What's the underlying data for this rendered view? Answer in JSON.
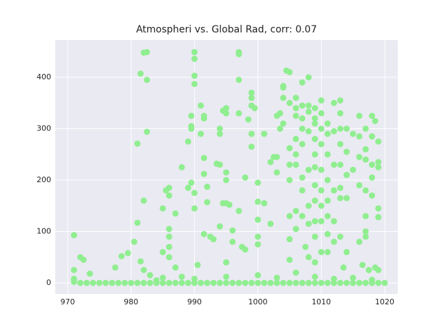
{
  "chart_data": {
    "type": "scatter",
    "title": "Atmospheri vs. Global Rad, corr: 0.07",
    "color": "#90ee90",
    "grid": true,
    "xlim": [
      968.04,
      1022.07
    ],
    "ylim": [
      -21.5,
      472.5
    ],
    "xticks": [
      970,
      980,
      990,
      1000,
      1010,
      1020
    ],
    "yticks": [
      0,
      100,
      200,
      300,
      400
    ],
    "x": [
      971,
      971,
      971,
      972,
      972.5,
      973.5,
      971,
      972,
      973,
      974,
      975,
      977,
      977.5,
      978.5,
      979.5,
      980.5,
      981,
      981,
      981.5,
      982,
      982.5,
      982.5,
      982.5,
      982,
      981.5,
      982,
      983,
      984,
      985,
      985,
      985.5,
      986,
      986,
      986,
      986,
      986,
      986,
      987,
      987,
      988,
      988,
      989,
      989,
      989.5,
      989.5,
      989.5,
      989.5,
      990,
      990,
      990,
      990,
      990,
      990,
      990.5,
      991,
      991,
      991.5,
      991.5,
      991.5,
      991.5,
      992,
      992,
      991.5,
      992.5,
      993,
      993.5,
      994,
      994,
      994,
      994.5,
      995,
      995,
      995,
      995,
      994.5,
      995,
      995.5,
      995,
      994,
      996,
      996,
      997,
      997,
      997,
      997,
      997,
      997.5,
      998,
      998,
      998.5,
      999,
      999,
      999,
      999.5,
      999,
      999,
      1000,
      1000,
      1000,
      1000,
      1000,
      1001,
      1001,
      1002,
      1002,
      1002.5,
      1003,
      1003,
      1003,
      1003.5,
      1003.5,
      1004,
      1004,
      1004,
      1004,
      1004.5,
      1005,
      1005,
      1005,
      1005,
      1005,
      1005,
      1005,
      1005,
      1006,
      1006,
      1006,
      1006,
      1006,
      1006,
      1006,
      1006,
      1007,
      1007,
      1007,
      1007,
      1007,
      1007,
      1007,
      1007,
      1007.5,
      1008,
      1008,
      1008,
      1008,
      1008,
      1008,
      1008,
      1008,
      1009,
      1009,
      1009,
      1009,
      1009,
      1009,
      1009,
      1009,
      1009,
      1009,
      1009,
      1010,
      1010,
      1010,
      1010,
      1010,
      1010,
      1010,
      1010,
      1010,
      1011,
      1011,
      1011,
      1011,
      1011,
      1011,
      1011,
      1011,
      1012,
      1012,
      1012,
      1012,
      1012,
      1012,
      1013,
      1013,
      1013,
      1013,
      1013,
      1013,
      1013,
      1013,
      1013.5,
      1014,
      1014,
      1014,
      1014,
      1014,
      1015,
      1015,
      1016,
      1016,
      1016,
      1016,
      1016,
      1016.5,
      1017,
      1017,
      1017,
      1017,
      1017,
      1017,
      1017,
      1017.5,
      1018,
      1018,
      1018,
      1018,
      1018,
      1018.5,
      1019,
      1019,
      1019,
      1019,
      1019,
      1019,
      1018.5,
      1020,
      1019,
      1018,
      1017,
      976,
      978,
      979,
      980,
      981,
      982,
      983,
      984,
      985,
      986,
      987,
      988,
      989,
      990,
      991,
      992,
      993,
      994,
      995,
      996,
      997,
      998,
      999,
      1000,
      1001,
      1002,
      1003,
      1004,
      1005,
      1006,
      1007,
      1008,
      1009,
      1010,
      1011,
      1012,
      1013,
      1014,
      1015,
      1016,
      985,
      990,
      995,
      1000,
      1003,
      1006,
      1009,
      1012,
      1015,
      1018
    ],
    "values": [
      93,
      25,
      8,
      50,
      45,
      18,
      2,
      0,
      0,
      0,
      0,
      0,
      30,
      52,
      58,
      80,
      117,
      271,
      407,
      448,
      449,
      395,
      294,
      160,
      42,
      25,
      15,
      5,
      60,
      145,
      180,
      185,
      170,
      105,
      90,
      70,
      50,
      135,
      30,
      225,
      12,
      275,
      185,
      195,
      300,
      305,
      325,
      449,
      436,
      403,
      387,
      175,
      145,
      35,
      290,
      345,
      325,
      320,
      243,
      212,
      187,
      157,
      95,
      90,
      85,
      232,
      230,
      300,
      290,
      335,
      340,
      330,
      215,
      200,
      155,
      155,
      152,
      40,
      110,
      102,
      80,
      449,
      445,
      395,
      330,
      140,
      70,
      65,
      205,
      318,
      370,
      360,
      345,
      340,
      265,
      290,
      195,
      158,
      123,
      90,
      75,
      290,
      155,
      115,
      235,
      245,
      325,
      245,
      215,
      300,
      330,
      380,
      383,
      360,
      310,
      413,
      410,
      350,
      262,
      230,
      200,
      130,
      85,
      45,
      360,
      340,
      325,
      280,
      250,
      230,
      140,
      105,
      390,
      345,
      320,
      300,
      270,
      205,
      180,
      130,
      70,
      400,
      345,
      333,
      295,
      220,
      150,
      115,
      50,
      340,
      320,
      310,
      280,
      250,
      225,
      190,
      160,
      120,
      90,
      40,
      355,
      330,
      300,
      270,
      220,
      180,
      150,
      120,
      60,
      310,
      290,
      250,
      200,
      160,
      130,
      95,
      60,
      350,
      295,
      230,
      180,
      120,
      80,
      355,
      330,
      300,
      270,
      230,
      185,
      165,
      90,
      30,
      300,
      255,
      210,
      165,
      60,
      290,
      220,
      325,
      285,
      245,
      190,
      80,
      35,
      300,
      260,
      240,
      180,
      130,
      100,
      90,
      25,
      325,
      285,
      230,
      205,
      170,
      315,
      275,
      235,
      225,
      145,
      128,
      25,
      30,
      0,
      0,
      0,
      0,
      0,
      0,
      0,
      0,
      0,
      0,
      0,
      0,
      0,
      0,
      0,
      0,
      0,
      0,
      0,
      0,
      0,
      0,
      0,
      0,
      0,
      0,
      0,
      0,
      0,
      0,
      0,
      0,
      0,
      0,
      0,
      0,
      0,
      0,
      0,
      0,
      0,
      0,
      0,
      0,
      10,
      8,
      12,
      15,
      10,
      20,
      12,
      8,
      10,
      6
    ]
  }
}
